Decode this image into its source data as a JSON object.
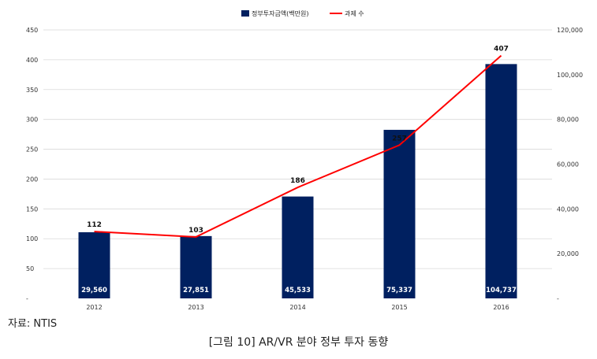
{
  "chart_data": {
    "type": "bar",
    "categories": [
      "2012",
      "2013",
      "2014",
      "2015",
      "2016"
    ],
    "series": [
      {
        "name": "정부투자금액(백만원)",
        "type": "bar",
        "axis": "right",
        "color": "#002060",
        "values": [
          29560,
          27851,
          45533,
          75337,
          104737
        ],
        "labels": [
          "29,560",
          "27,851",
          "45,533",
          "75,337",
          "104,737"
        ]
      },
      {
        "name": "과제 수",
        "type": "line",
        "axis": "left",
        "color": "#ff0000",
        "values": [
          112,
          103,
          186,
          257,
          407
        ]
      }
    ],
    "y_left": {
      "ylim": [
        0,
        450
      ],
      "ticks": [
        "450",
        "400",
        "350",
        "300",
        "250",
        "200",
        "150",
        "100",
        "50",
        "-"
      ]
    },
    "y_right": {
      "ylim": [
        0,
        120000
      ],
      "ticks": [
        "120,000",
        "100,000",
        "80,000",
        "60,000",
        "40,000",
        "20,000",
        "-"
      ]
    },
    "grid": true,
    "legend_position": "top-center"
  },
  "source": "자료: NTIS",
  "caption": "[그림 10] AR/VR 분야 정부 투자 동향"
}
